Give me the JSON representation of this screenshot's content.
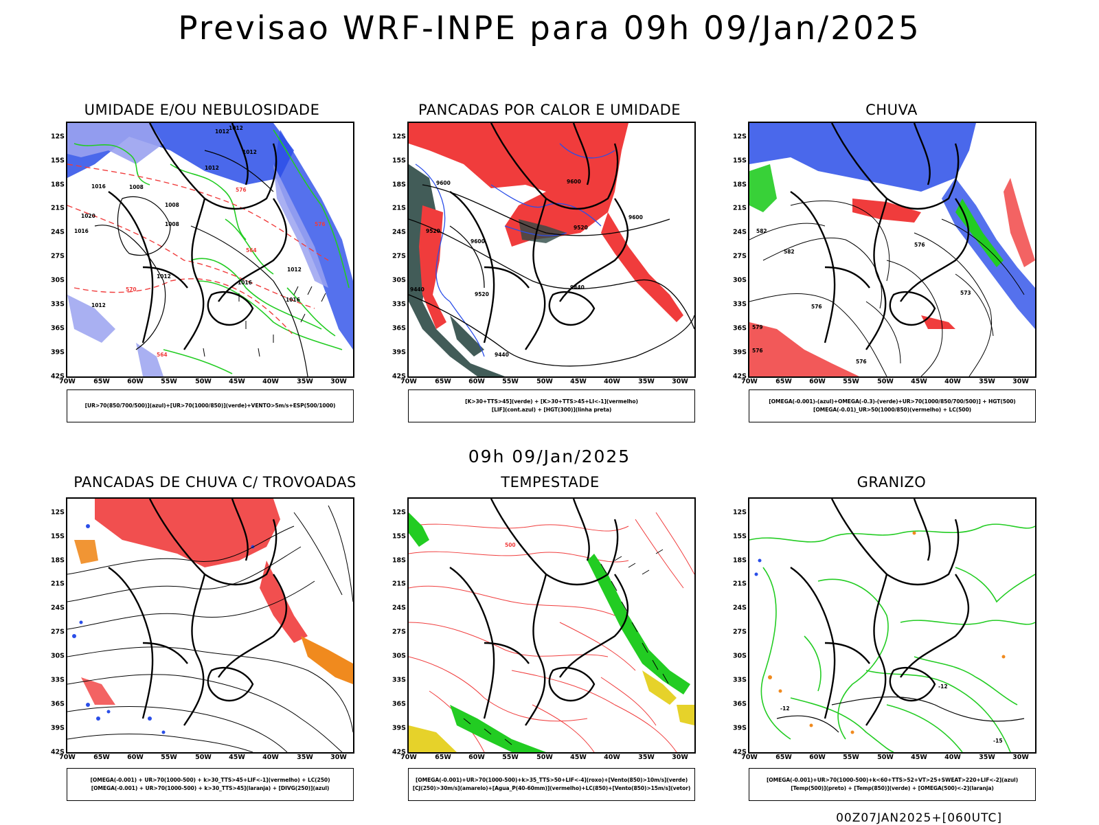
{
  "header": {
    "title": "Previsao WRF-INPE  para 09h 09/Jan/2025",
    "mid_stamp": "09h 09/Jan/2025",
    "footer_stamp": "00Z07JAN2025+[060UTC]"
  },
  "axes": {
    "lat_labels": [
      "12S",
      "15S",
      "18S",
      "21S",
      "24S",
      "27S",
      "30S",
      "33S",
      "36S",
      "39S",
      "42S"
    ],
    "lon_labels": [
      "70W",
      "65W",
      "60W",
      "55W",
      "50W",
      "45W",
      "40W",
      "35W",
      "30W"
    ]
  },
  "colors": {
    "blue": "#2a4ee8",
    "light_blue": "#9aa2f0",
    "green": "#22cc22",
    "red": "#f03c3c",
    "dark_teal": "#2e4a46",
    "orange": "#f08a1e",
    "yellow": "#e6d22a",
    "black": "#000000"
  },
  "panels": [
    {
      "title": "UMIDADE E/OU NEBULOSIDADE",
      "legend": [
        "[UR>70(850/700/500)](azul)+[UR>70(1000/850)](verde)+VENTO>5m/s+ESP(500/1000)"
      ],
      "contour_labels": [
        "1012",
        "1012",
        "1012",
        "1012",
        "1008",
        "1008",
        "1008",
        "1016",
        "1020",
        "1016",
        "1012",
        "1016",
        "1016",
        "1012",
        "1012",
        "576",
        "576",
        "570",
        "564",
        "564"
      ]
    },
    {
      "title": "PANCADAS POR CALOR E UMIDADE",
      "legend": [
        "[K>30+TTS>45](verde) + [K>30+TTS>45+LI<-1](vermelho)",
        "[LIF](cont.azul) + [HGT(300)](linha preta)"
      ],
      "contour_labels": [
        "9600",
        "9600",
        "9600",
        "9520",
        "9520",
        "9600",
        "9440",
        "9520",
        "9440",
        "9440"
      ]
    },
    {
      "title": "CHUVA",
      "legend": [
        "[OMEGA(-0.001)-(azul)+OMEGA(-0.3)-(verde)+UR>70(1000/850/700/500)] + HGT(500)",
        "[OMEGA(-0.01)_UR>50(1000/850)(vermelho) + LC(500)"
      ],
      "contour_labels": [
        "582",
        "582",
        "576",
        "573",
        "576",
        "579",
        "576",
        "576"
      ]
    },
    {
      "title": "PANCADAS DE CHUVA C/ TROVOADAS",
      "legend": [
        "[OMEGA(-0.001) + UR>70(1000-500) + k>30_TTS>45+LIF<-1](vermelho) + LC(250)",
        "[OMEGA(-0.001) + UR>70(1000-500) + k>30_TTS>45](laranja) + [DIVG(250)](azul)"
      ],
      "contour_labels": []
    },
    {
      "title": "TEMPESTADE",
      "legend": [
        "[OMEGA(-0.001)+UR>70(1000-500)+k>35_TTS>50+LIF<-4](roxo)+[Vento(850)>10m/s](verde)",
        "[CJ(250)>30m/s](amarelo)+[Agua_P(40-60mm)](vermelho)+LC(850)+[Vento(850)>15m/s](vetor)"
      ],
      "contour_labels": [
        "500"
      ]
    },
    {
      "title": "GRANIZO",
      "legend": [
        "[OMEGA(-0.001)+UR>70(1000-500)+k<60+TTS>52+VT>25+SWEAT>220+LIF<-2](azul)",
        "[Temp(500)](preto) + [Temp(850)](verde) + [OMEGA(500)<-2](laranja)"
      ],
      "contour_labels": [
        "-12",
        "-12",
        "-15"
      ]
    }
  ]
}
